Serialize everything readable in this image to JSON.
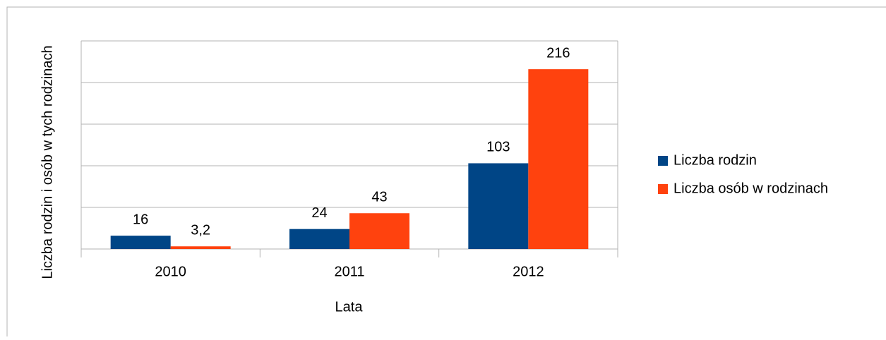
{
  "chart_data": {
    "type": "bar",
    "categories": [
      "2010",
      "2011",
      "2012"
    ],
    "series": [
      {
        "name": "Liczba rodzin",
        "color": "#004586",
        "values": [
          16,
          24,
          103
        ]
      },
      {
        "name": "Liczba osób w rodzinach",
        "color": "#ff420e",
        "values": [
          3.2,
          43,
          216
        ],
        "value_labels": [
          "3,2",
          "43",
          "216"
        ]
      }
    ],
    "x_label": "Lata",
    "y_label": "Liczba rodzin i osób w tych rodzinach",
    "ylim": [
      0,
      250
    ],
    "yticks": [
      0,
      50,
      100,
      150,
      200,
      250
    ],
    "grid": true,
    "legend": "right"
  }
}
